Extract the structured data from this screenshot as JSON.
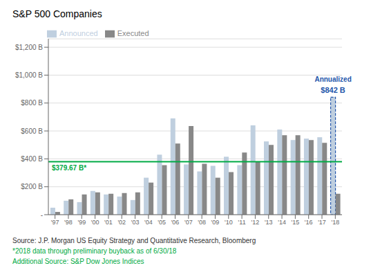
{
  "chart_data": {
    "type": "bar",
    "title": "S&P 500 Companies",
    "categories": [
      "'97",
      "'98",
      "'99",
      "'00",
      "'01",
      "'02",
      "'03",
      "'04",
      "'05",
      "'06",
      "'07",
      "'08",
      "'09",
      "'10",
      "'11",
      "'12",
      "'13",
      "'14",
      "'15",
      "'16",
      "'17",
      "'18"
    ],
    "series": [
      {
        "name": "Announced",
        "color": "#bfcfdf",
        "values": [
          50,
          100,
          90,
          170,
          145,
          130,
          105,
          265,
          430,
          690,
          360,
          310,
          350,
          415,
          355,
          640,
          525,
          610,
          535,
          545,
          555,
          842
        ]
      },
      {
        "name": "Executed",
        "color": "#888888",
        "values": [
          20,
          110,
          145,
          160,
          150,
          155,
          160,
          230,
          355,
          510,
          635,
          365,
          265,
          305,
          445,
          380,
          500,
          570,
          570,
          535,
          515,
          150
        ]
      }
    ],
    "ylim": [
      0,
      1260
    ],
    "yticks": [
      {
        "value": 0,
        "label": "-"
      },
      {
        "value": 200,
        "label": "$200 B"
      },
      {
        "value": 400,
        "label": "$400 B"
      },
      {
        "value": 600,
        "label": "$600 B"
      },
      {
        "value": 800,
        "label": "$800 B"
      },
      {
        "value": 1000,
        "label": "$1,000 B"
      },
      {
        "value": 1200,
        "label": "$1,200 B"
      }
    ],
    "grid": true,
    "legend": "upper left",
    "hline": {
      "value": 379.67,
      "label": "$379.67 B*",
      "color": "#00aa44"
    },
    "annotations": [
      {
        "text": "Annualized",
        "color": "#2255aa"
      },
      {
        "text": "$842 B",
        "color": "#2255aa"
      }
    ],
    "notes": [
      {
        "text": "Source: J.P. Morgan US Equity Strategy and Quantitative Research, Bloomberg",
        "color": "#333333"
      },
      {
        "text": "*2018 data through preliminary buyback as of 6/30/18",
        "color": "#00aa44"
      },
      {
        "text": "Additional Source: S&P Dow Jones Indices",
        "color": "#00aa44"
      }
    ]
  }
}
